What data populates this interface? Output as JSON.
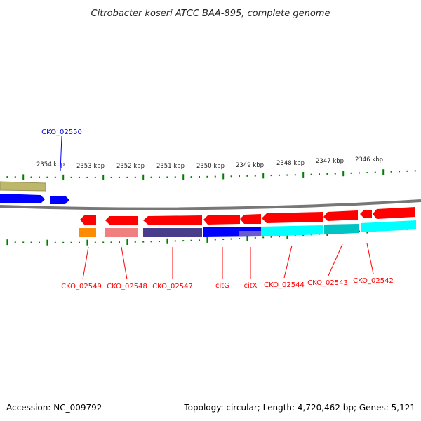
{
  "title": "Citrobacter koseri ATCC BAA-895, complete genome",
  "footer": {
    "accession": "Accession: NC_009792",
    "summary": "Topology: circular; Length: 4,720,462 bp; Genes: 5,121"
  },
  "scale_labels": [
    "2354 kbp",
    "2353 kbp",
    "2352 kbp",
    "2351 kbp",
    "2350 kbp",
    "2349 kbp",
    "2348 kbp",
    "2347 kbp",
    "2346 kbp"
  ],
  "genes_forward": [
    {
      "label": "CKO_02550",
      "color": "#0000cc"
    }
  ],
  "genes_reverse": [
    {
      "label": "CKO_02549"
    },
    {
      "label": "CKO_02548"
    },
    {
      "label": "CKO_02547"
    },
    {
      "label": "citG"
    },
    {
      "label": "citX"
    },
    {
      "label": "CKO_02544"
    },
    {
      "label": "CKO_02543"
    },
    {
      "label": "CKO_02542"
    }
  ],
  "colors": {
    "gene": "#ff0000",
    "forward_gene": "#0000ff",
    "tick": "#008000",
    "backbone": "#808080",
    "cog_olive": "#bdb76b",
    "cog_orange": "#ff8c00",
    "cog_pink": "#f08080",
    "cog_navy": "#483d8b",
    "cog_cyan": "#00ffff",
    "cog_teal": "#00ced1"
  }
}
